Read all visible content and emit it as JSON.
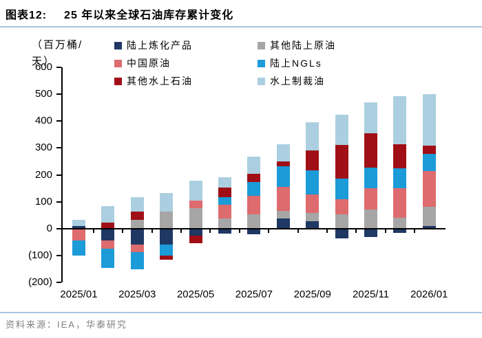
{
  "header": {
    "figure_label": "图表12:",
    "title": "25 年以来全球石油库存累计变化"
  },
  "footer": {
    "source": "资料来源：IEA，华泰研究"
  },
  "chart_data": {
    "type": "bar",
    "stacked": true,
    "title": "25 年以来全球石油库存累计变化",
    "unit": "（百万桶/天）",
    "grid": false,
    "legend_position": "top",
    "ylim": [
      -200,
      600
    ],
    "y_ticks": [
      600,
      500,
      400,
      300,
      200,
      100,
      0,
      -100,
      -200
    ],
    "y_tick_labels": [
      "600",
      "500",
      "400",
      "300",
      "200",
      "100",
      "0",
      "(100)",
      "(200)"
    ],
    "categories": [
      "2025/01",
      "2025/02",
      "2025/03",
      "2025/04",
      "2025/05",
      "2025/06",
      "2025/07",
      "2025/08",
      "2025/09",
      "2025/10",
      "2025/11",
      "2025/12",
      "2026/01"
    ],
    "x_tick_labels": [
      "2025/01",
      "2025/03",
      "2025/05",
      "2025/07",
      "2025/09",
      "2025/11",
      "2026/01"
    ],
    "series": [
      {
        "name": "陆上炼化产品",
        "color": "#1F3864",
        "values": [
          10,
          -44,
          -60,
          -59,
          -25,
          -18,
          -20,
          38,
          28,
          -36,
          -31,
          -15,
          10
        ]
      },
      {
        "name": "其他陆上原油",
        "color": "#A6A6A6",
        "values": [
          0,
          0,
          33,
          64,
          77,
          38,
          54,
          28,
          31,
          54,
          72,
          41,
          70
        ]
      },
      {
        "name": "中国原油",
        "color": "#DE6B6E",
        "values": [
          -45,
          -30,
          -28,
          0,
          28,
          51,
          69,
          90,
          67,
          56,
          77,
          110,
          133
        ]
      },
      {
        "name": "陆上NGLs",
        "color": "#1B9BD8",
        "values": [
          -55,
          -72,
          -64,
          -41,
          0,
          28,
          51,
          77,
          90,
          77,
          77,
          74,
          64
        ]
      },
      {
        "name": "其他水上石油",
        "color": "#A00F15",
        "values": [
          0,
          23,
          31,
          -15,
          -30,
          36,
          31,
          18,
          75,
          123,
          128,
          90,
          31
        ]
      },
      {
        "name": "水上制裁油",
        "color": "#ABCFE0",
        "values": [
          23,
          61,
          54,
          67,
          74,
          38,
          64,
          62,
          105,
          113,
          115,
          177,
          192
        ]
      }
    ]
  }
}
